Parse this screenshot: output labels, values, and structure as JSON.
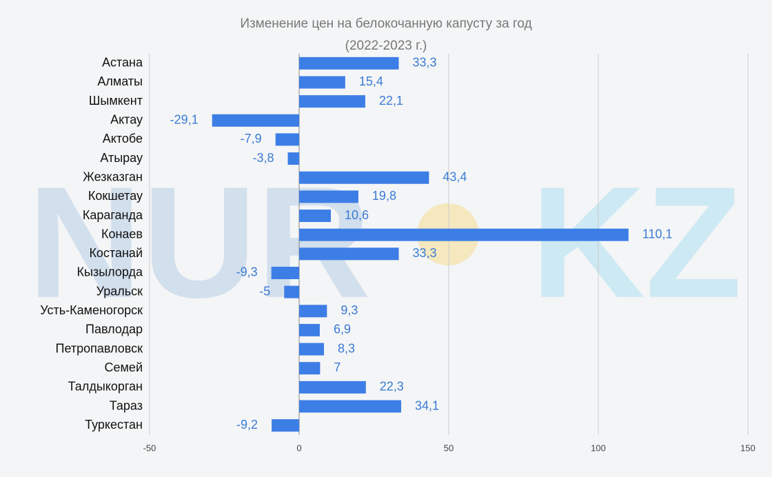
{
  "watermark": [
    "NUR",
    "KZ"
  ],
  "chart_data": {
    "type": "bar",
    "orientation": "horizontal",
    "title": "Изменение цен на белокочанную капусту за год",
    "subtitle": "(2022-2023 г.)",
    "categories": [
      "Астана",
      "Алматы",
      "Шымкент",
      "Актау",
      "Актобе",
      "Атырау",
      "Жезказган",
      "Кокшетау",
      "Караганда",
      "Конаев",
      "Костанай",
      "Кызылорда",
      "Уральск",
      "Усть-Каменогорск",
      "Павлодар",
      "Петропавловск",
      "Семей",
      "Талдыкорган",
      "Тараз",
      "Туркестан"
    ],
    "values": [
      33.3,
      15.4,
      22.1,
      -29.1,
      -7.9,
      -3.8,
      43.4,
      19.8,
      10.6,
      110.1,
      33.3,
      -9.3,
      -5,
      9.3,
      6.9,
      8.3,
      7,
      22.3,
      34.1,
      -9.2
    ],
    "value_labels": [
      "33,3",
      "15,4",
      "22,1",
      "-29,1",
      "-7,9",
      "-3,8",
      "43,4",
      "19,8",
      "10,6",
      "110,1",
      "33,3",
      "-9,3",
      "-5",
      "9,3",
      "6,9",
      "8,3",
      "7",
      "22,3",
      "34,1",
      "-9,2"
    ],
    "color": "#3d7ee6",
    "xlim": [
      -50,
      150
    ],
    "xticks": [
      -50,
      0,
      50,
      100,
      150
    ],
    "grid": true
  }
}
